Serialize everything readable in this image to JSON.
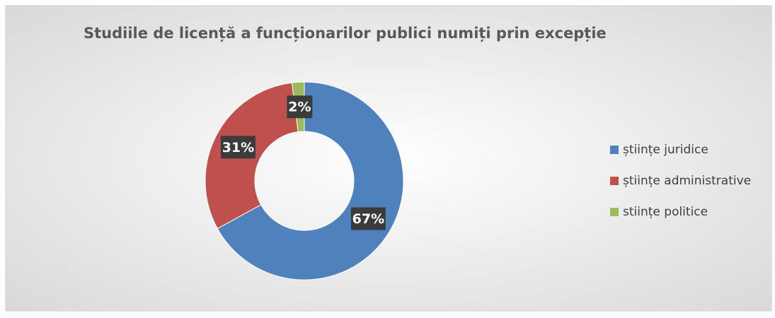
{
  "chart_data": {
    "type": "donut",
    "title": "Studiile de licență  a funcționarilor publici numiți prin excepție",
    "categories": [
      "științe juridice",
      "științe administrative",
      "stiințe politice"
    ],
    "values": [
      67,
      31,
      2
    ],
    "value_labels": [
      "67%",
      "31%",
      "2%"
    ],
    "colors": [
      "#4f81bd",
      "#c0504d",
      "#9bbb59"
    ],
    "legend": "right"
  }
}
